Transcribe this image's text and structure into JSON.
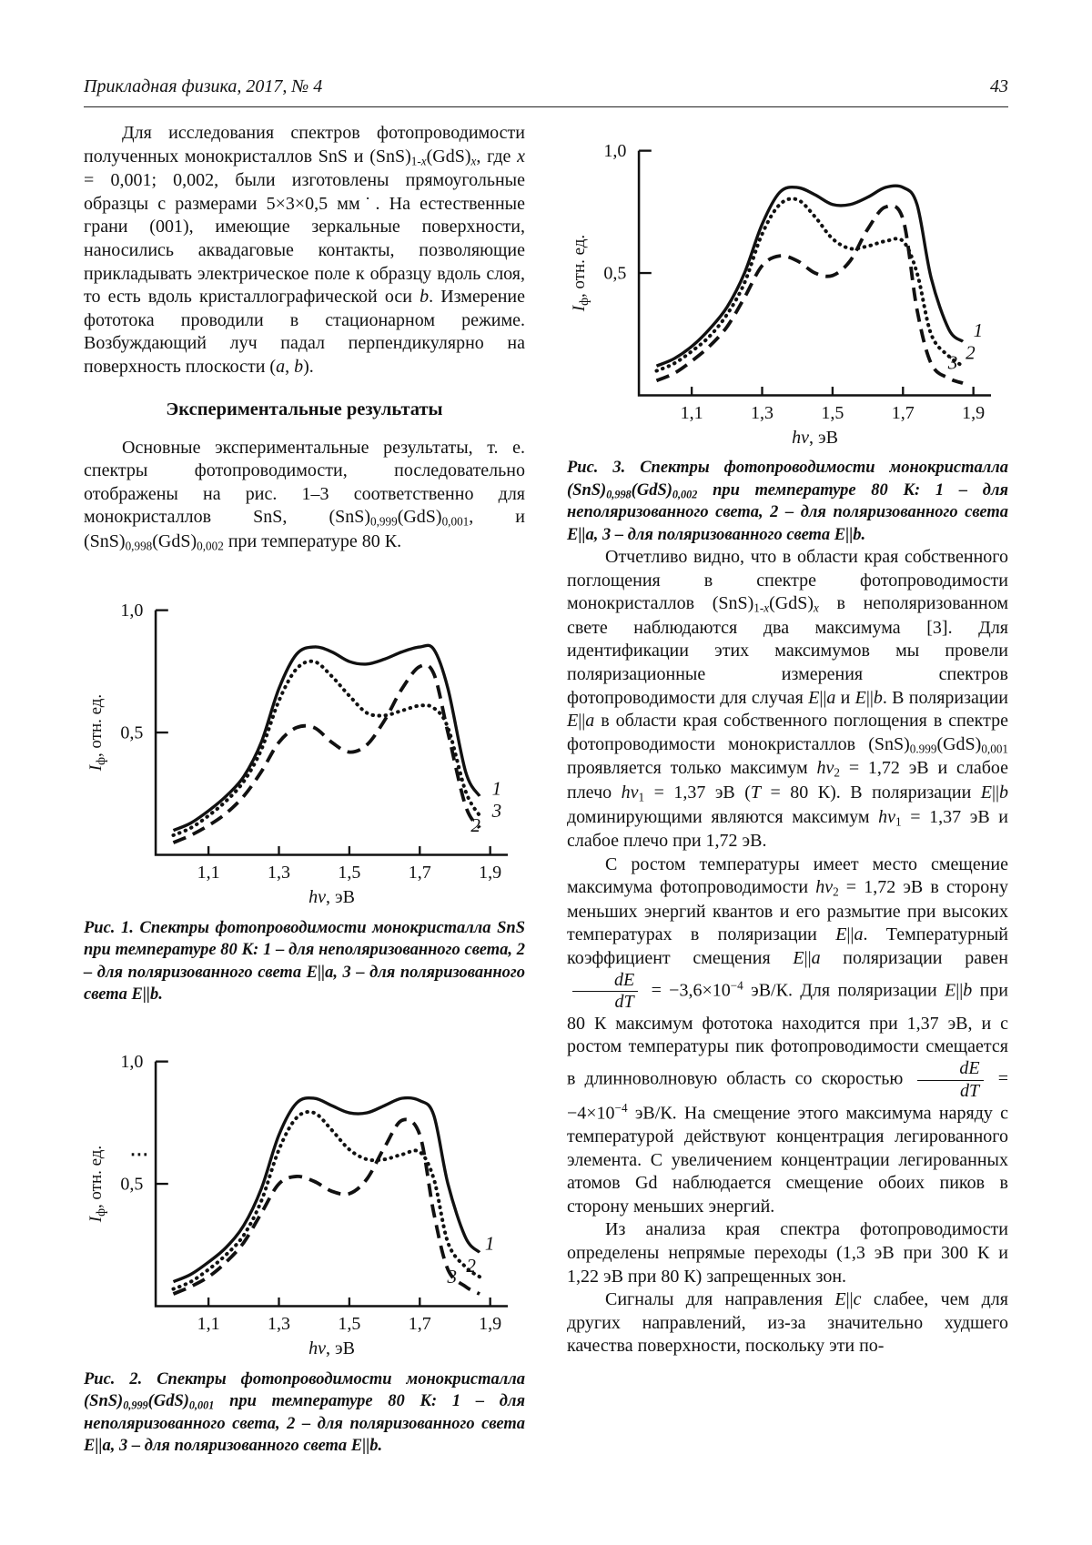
{
  "header": {
    "journal": "Прикладная физика, 2017, № 4",
    "page_number": "43"
  },
  "left_column": {
    "paragraph_1": [
      {
        "t": "Для исследования спектров фотопроводимости полученных монокристаллов SnS и (SnS)"
      },
      {
        "sub": "1-"
      },
      {
        "subi": "x"
      },
      {
        "t": "(GdS)"
      },
      {
        "subi": "x"
      },
      {
        "t": ", где "
      },
      {
        "i": "x"
      },
      {
        "t": " = 0,001; 0,002, были изготовлены прямоугольные образцы с размерами 5×3×0,5 мм˙. На естественные грани (001), имеющие зеркальные поверхности, наносились аквадаговые контакты, позволяющие прикладывать электрическое поле к образцу вдоль слоя, то есть вдоль кристаллографической оси "
      },
      {
        "i": "b"
      },
      {
        "t": ". Измерение фототока проводили в стационарном режиме. Возбуждающий луч падал перпендикулярно на поверхность плоскости ("
      },
      {
        "i": "a"
      },
      {
        "t": ", "
      },
      {
        "i": "b"
      },
      {
        "t": ")."
      }
    ],
    "section_heading": "Экспериментальные результаты",
    "paragraph_2": [
      {
        "t": "Основные экспериментальные результаты, т. е. спектры фотопроводимости, последовательно отображены на рис.  1–3 соответственно для монокристаллов SnS, (SnS)"
      },
      {
        "sub": "0,999"
      },
      {
        "t": "(GdS)"
      },
      {
        "sub": "0,001"
      },
      {
        "t": ", и (SnS)"
      },
      {
        "sub": "0,998"
      },
      {
        "t": "(GdS)"
      },
      {
        "sub": "0,002"
      },
      {
        "t": " при температуре 80 К."
      }
    ]
  },
  "figures": [
    {
      "caption": [
        {
          "t": "Рис. 1. Спектры фотопроводимости монокристалла SnS при температуре 80 К: 1 – для неполяризованного света, 2 – для поляризованного света E||a, 3 – для поляризованного света E||b."
        }
      ]
    },
    {
      "caption": [
        {
          "t": "Рис. 2. Спектры фотопроводимости монокристалла (SnS)"
        },
        {
          "sub": "0,999"
        },
        {
          "t": "(GdS)"
        },
        {
          "sub": "0,001"
        },
        {
          "t": " при температуре 80 К: 1 – для неполяризованного света, 2 – для поляризованного света E||a, 3 – для поляризованного света E||b."
        }
      ]
    },
    {
      "caption": [
        {
          "t": "Рис. 3. Спектры фотопроводимости монокристалла (SnS)"
        },
        {
          "sub": "0,998"
        },
        {
          "t": "(GdS)"
        },
        {
          "sub": "0,002"
        },
        {
          "t": " при температуре 80 К: 1 – для неполяризованного света, 2 – для поляризованного света E||a, 3 – для поляризованного света E||b."
        }
      ]
    }
  ],
  "right_column": {
    "paragraph_1": [
      {
        "t": "Отчетливо видно, что в области края собственного поглощения в спектре фотопроводимости монокристаллов (SnS)"
      },
      {
        "sub": "1-"
      },
      {
        "subi": "x"
      },
      {
        "t": "(GdS)"
      },
      {
        "subi": "x"
      },
      {
        "t": " в неполяризованном свете наблюдаются два максимума [3]. Для идентификации этих максимумов мы провели поляризационные измерения спектров фотопроводимости для случая "
      },
      {
        "i": "E"
      },
      {
        "t": "||"
      },
      {
        "i": "a"
      },
      {
        "t": " и "
      },
      {
        "i": "E"
      },
      {
        "t": "||"
      },
      {
        "i": "b"
      },
      {
        "t": ". В поляризации "
      },
      {
        "i": "E"
      },
      {
        "t": "||"
      },
      {
        "i": "a"
      },
      {
        "t": " в области края собственного поглощения в спектре фотопроводимости монокристаллов (SnS)"
      },
      {
        "sub": "0.999"
      },
      {
        "t": "(GdS)"
      },
      {
        "sub": "0,001"
      },
      {
        "t": " проявляется только максимум "
      },
      {
        "i": "hν"
      },
      {
        "sub": "2"
      },
      {
        "t": " = 1,72 эВ и слабое плечо "
      },
      {
        "i": "hν"
      },
      {
        "sub": "1"
      },
      {
        "t": " = 1,37 эВ ("
      },
      {
        "i": "T"
      },
      {
        "t": " = 80 К). В поляризации "
      },
      {
        "i": "E"
      },
      {
        "t": "||"
      },
      {
        "i": "b"
      },
      {
        "t": " доминирующими являются максимум "
      },
      {
        "i": "hν"
      },
      {
        "sub": "1"
      },
      {
        "t": " = 1,37 эВ и слабое плечо при 1,72 эВ."
      }
    ],
    "paragraph_2": [
      {
        "t": "С ростом температуры имеет место смещение максимума фотопроводимости "
      },
      {
        "i": "hν"
      },
      {
        "sub": "2"
      },
      {
        "t": " = 1,72 эВ в сторону меньших энергий квантов и его размытие при высоких температурах в поляризации "
      },
      {
        "i": "E"
      },
      {
        "t": "||"
      },
      {
        "i": "a"
      },
      {
        "t": ". Температурный коэффициент смещения "
      },
      {
        "i": "E"
      },
      {
        "t": "||"
      },
      {
        "i": "a"
      },
      {
        "t": " поляризации равен "
      },
      {
        "frac": {
          "num": "dE",
          "den": "dT"
        }
      },
      {
        "t": " = −3,6×10"
      },
      {
        "sup": "−4"
      },
      {
        "t": " эВ/К. Для поляризации "
      },
      {
        "i": "E"
      },
      {
        "t": "||"
      },
      {
        "i": "b"
      },
      {
        "t": " при 80 К максимум фототока находится при 1,37 эВ, и с ростом температуры пик фотопроводимости смещается в длинноволновую область со скоростью "
      },
      {
        "frac": {
          "num": "dE",
          "den": "dT"
        }
      },
      {
        "t": " = −4×10"
      },
      {
        "sup": "−4"
      },
      {
        "t": " эВ/К. На смещение этого максимума наряду с температурой действуют концентрация легированного элемента. С увеличением концентрации легированных атомов Gd наблюдается смещение обоих пиков в сторону меньших энергий."
      }
    ],
    "paragraph_3": [
      {
        "t": "Из анализа края спектра фотопроводимости определены непрямые переходы (1,3 эВ при 300 К и 1,22 эВ при 80 К) запрещенных зон."
      }
    ],
    "paragraph_4": [
      {
        "t": "Сигналы для направления "
      },
      {
        "i": "E"
      },
      {
        "t": "||"
      },
      {
        "i": "c"
      },
      {
        "t": " слабее, чем для других направлений, из-за значительно худшего качества поверхности, поскольку эти по-"
      }
    ]
  },
  "chart_data": [
    {
      "type": "line",
      "figure": "Рис. 1",
      "title": "Спектры фотопроводимости монокристалла SnS, 80 К",
      "xlabel": {
        "italic": "hν",
        "rest": ", эВ"
      },
      "ylabel": {
        "main": "I",
        "sub": "ф",
        "rest": ", отн. ед."
      },
      "xlim": [
        0.95,
        1.95
      ],
      "ylim": [
        0,
        1.05
      ],
      "grid": false,
      "xticks": {
        "values": [
          1.1,
          1.3,
          1.5,
          1.7,
          1.9
        ],
        "labels": [
          "1,1",
          "1,3",
          "1,5",
          "1,7",
          "1,9"
        ]
      },
      "yticks": {
        "values": [
          1.0,
          0.5
        ],
        "labels": [
          "1,0",
          "0,5"
        ]
      },
      "x": [
        1.0,
        1.05,
        1.1,
        1.15,
        1.2,
        1.25,
        1.3,
        1.35,
        1.4,
        1.45,
        1.5,
        1.55,
        1.6,
        1.65,
        1.7,
        1.74,
        1.78,
        1.83,
        1.87
      ],
      "series": [
        {
          "name": "1 – неполяризованный свет",
          "style": "solid",
          "label": {
            "text": "1",
            "x": 1.905,
            "y": 0.245
          },
          "values": [
            0.1,
            0.13,
            0.18,
            0.24,
            0.32,
            0.46,
            0.68,
            0.82,
            0.85,
            0.83,
            0.79,
            0.78,
            0.8,
            0.83,
            0.85,
            0.84,
            0.68,
            0.34,
            0.24
          ]
        },
        {
          "name": "2 – поляризованный свет E||a",
          "style": "dashed",
          "label": {
            "text": "2",
            "x": 1.845,
            "y": 0.095
          },
          "values": [
            0.05,
            0.08,
            0.12,
            0.17,
            0.24,
            0.34,
            0.46,
            0.52,
            0.52,
            0.46,
            0.42,
            0.45,
            0.55,
            0.68,
            0.77,
            0.74,
            0.5,
            0.2,
            0.11
          ]
        },
        {
          "name": "3 – поляризованный свет E||b",
          "style": "dotted",
          "label": {
            "text": "3",
            "x": 1.905,
            "y": 0.155
          },
          "values": [
            0.08,
            0.11,
            0.16,
            0.22,
            0.3,
            0.43,
            0.63,
            0.76,
            0.79,
            0.73,
            0.65,
            0.58,
            0.57,
            0.59,
            0.61,
            0.6,
            0.52,
            0.26,
            0.16
          ]
        }
      ]
    },
    {
      "type": "line",
      "figure": "Рис. 2",
      "title": "Спектры фотопроводимости монокристалла (SnS)0,999(GdS)0,001, 80 К",
      "xlabel": {
        "italic": "hν",
        "rest": ", эВ"
      },
      "ylabel": {
        "main": "I",
        "sub": "ф",
        "rest": ", отн. ед."
      },
      "xlim": [
        0.95,
        1.95
      ],
      "ylim": [
        0,
        1.05
      ],
      "grid": false,
      "xticks": {
        "values": [
          1.1,
          1.3,
          1.5,
          1.7,
          1.9
        ],
        "labels": [
          "1,1",
          "1,3",
          "1,5",
          "1,7",
          "1,9"
        ]
      },
      "yticks": {
        "values": [
          1.0,
          0.5
        ],
        "labels": [
          "1,0",
          "0,5"
        ]
      },
      "stray_mark": {
        "y": 0.62
      },
      "x": [
        1.0,
        1.05,
        1.1,
        1.15,
        1.2,
        1.25,
        1.3,
        1.35,
        1.4,
        1.45,
        1.5,
        1.55,
        1.6,
        1.65,
        1.7,
        1.74,
        1.78,
        1.83,
        1.87
      ],
      "series": [
        {
          "name": "1 – неполяризованный свет",
          "style": "solid",
          "label": {
            "text": "1",
            "x": 1.885,
            "y": 0.23
          },
          "values": [
            0.1,
            0.13,
            0.18,
            0.24,
            0.33,
            0.48,
            0.7,
            0.83,
            0.85,
            0.82,
            0.79,
            0.79,
            0.82,
            0.85,
            0.84,
            0.78,
            0.5,
            0.28,
            0.22
          ]
        },
        {
          "name": "2 – поляризованный свет E||a",
          "style": "dashed",
          "label": {
            "text": "2",
            "x": 1.832,
            "y": 0.14
          },
          "values": [
            0.05,
            0.08,
            0.12,
            0.18,
            0.26,
            0.38,
            0.5,
            0.53,
            0.51,
            0.47,
            0.46,
            0.52,
            0.65,
            0.76,
            0.7,
            0.38,
            0.15,
            0.08,
            0.05
          ]
        },
        {
          "name": "3 – поляризованный свет E||b",
          "style": "dotted",
          "label": {
            "text": "3",
            "x": 1.778,
            "y": 0.095
          },
          "values": [
            0.07,
            0.1,
            0.15,
            0.21,
            0.29,
            0.43,
            0.64,
            0.77,
            0.79,
            0.72,
            0.64,
            0.6,
            0.6,
            0.62,
            0.63,
            0.52,
            0.26,
            0.16,
            0.12
          ]
        }
      ]
    },
    {
      "type": "line",
      "figure": "Рис. 3",
      "title": "Спектры фотопроводимости монокристалла (SnS)0,998(GdS)0,002, 80 К",
      "xlabel": {
        "italic": "hν",
        "rest": ", эВ"
      },
      "ylabel": {
        "main": "I",
        "sub": "ф",
        "rest": ", отн. ед."
      },
      "xlim": [
        0.95,
        1.95
      ],
      "ylim": [
        0,
        1.05
      ],
      "grid": false,
      "xticks": {
        "values": [
          1.1,
          1.3,
          1.5,
          1.7,
          1.9
        ],
        "labels": [
          "1,1",
          "1,3",
          "1,5",
          "1,7",
          "1,9"
        ]
      },
      "yticks": {
        "values": [
          1.0,
          0.5
        ],
        "labels": [
          "1,0",
          "0,5"
        ]
      },
      "x": [
        1.0,
        1.05,
        1.1,
        1.15,
        1.2,
        1.25,
        1.3,
        1.35,
        1.4,
        1.45,
        1.5,
        1.55,
        1.6,
        1.65,
        1.7,
        1.74,
        1.78,
        1.83,
        1.87
      ],
      "series": [
        {
          "name": "1 – неполяризованный свет",
          "style": "solid",
          "label": {
            "text": "1",
            "x": 1.9,
            "y": 0.24
          },
          "values": [
            0.12,
            0.15,
            0.2,
            0.27,
            0.36,
            0.5,
            0.7,
            0.83,
            0.85,
            0.82,
            0.78,
            0.78,
            0.81,
            0.85,
            0.85,
            0.78,
            0.48,
            0.27,
            0.22
          ]
        },
        {
          "name": "2 – поляризованный свет E||a",
          "style": "dashed",
          "label": {
            "text": "2",
            "x": 1.878,
            "y": 0.148
          },
          "values": [
            0.06,
            0.09,
            0.14,
            0.2,
            0.28,
            0.4,
            0.53,
            0.57,
            0.55,
            0.5,
            0.49,
            0.55,
            0.68,
            0.77,
            0.72,
            0.35,
            0.13,
            0.07,
            0.05
          ]
        },
        {
          "name": "3 – поляризованный свет E||b",
          "style": "dotted",
          "label": {
            "text": "3",
            "x": 1.828,
            "y": 0.108
          },
          "values": [
            0.1,
            0.13,
            0.18,
            0.24,
            0.33,
            0.46,
            0.66,
            0.78,
            0.8,
            0.73,
            0.64,
            0.6,
            0.61,
            0.63,
            0.63,
            0.5,
            0.25,
            0.16,
            0.12
          ]
        }
      ]
    }
  ]
}
